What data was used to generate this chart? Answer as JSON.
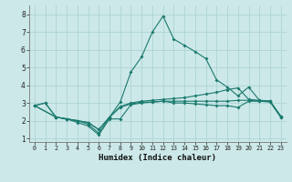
{
  "xlabel": "Humidex (Indice chaleur)",
  "background_color": "#cce8e8",
  "grid_color": "#aed4d4",
  "line_color": "#1a7a6e",
  "xlim": [
    -0.5,
    23.5
  ],
  "ylim": [
    0.8,
    8.5
  ],
  "xticks": [
    0,
    1,
    2,
    3,
    4,
    5,
    6,
    7,
    8,
    9,
    10,
    11,
    12,
    13,
    14,
    15,
    16,
    17,
    18,
    19,
    20,
    21,
    22,
    23
  ],
  "yticks": [
    1,
    2,
    3,
    4,
    5,
    6,
    7,
    8
  ],
  "line1_x": [
    0,
    1,
    2,
    3,
    4,
    5,
    6,
    7,
    8,
    9,
    10,
    11,
    12,
    13,
    14,
    15,
    16,
    17,
    18,
    19,
    20,
    21,
    22,
    23
  ],
  "line1_y": [
    2.85,
    3.0,
    2.2,
    2.1,
    1.9,
    1.7,
    1.2,
    2.1,
    2.1,
    2.9,
    3.0,
    3.05,
    3.1,
    3.0,
    3.0,
    2.95,
    2.9,
    2.85,
    2.85,
    2.75,
    3.1,
    3.1,
    3.05,
    2.2
  ],
  "line2_x": [
    0,
    1,
    2,
    3,
    4,
    5,
    6,
    7,
    8,
    9,
    10,
    11,
    12,
    13,
    14,
    15,
    16,
    17,
    18,
    19,
    20,
    21,
    22,
    23
  ],
  "line2_y": [
    2.85,
    3.0,
    2.2,
    2.1,
    2.0,
    1.8,
    1.3,
    2.2,
    3.05,
    4.75,
    5.6,
    7.0,
    7.9,
    6.6,
    6.25,
    5.9,
    5.5,
    4.3,
    3.9,
    3.4,
    3.9,
    3.15,
    3.1,
    2.2
  ],
  "line3_x": [
    0,
    2,
    3,
    4,
    5,
    6,
    7,
    8,
    9,
    10,
    11,
    12,
    13,
    14,
    15,
    16,
    17,
    18,
    19,
    20,
    21,
    22,
    23
  ],
  "line3_y": [
    2.85,
    2.2,
    2.1,
    2.0,
    1.9,
    1.5,
    2.2,
    2.8,
    3.0,
    3.1,
    3.15,
    3.2,
    3.25,
    3.3,
    3.4,
    3.5,
    3.6,
    3.75,
    3.85,
    3.2,
    3.15,
    3.1,
    2.25
  ],
  "line4_x": [
    0,
    2,
    3,
    4,
    5,
    6,
    7,
    8,
    9,
    10,
    11,
    12,
    13,
    14,
    15,
    16,
    17,
    18,
    19,
    20,
    21,
    22,
    23
  ],
  "line4_y": [
    2.85,
    2.2,
    2.1,
    2.0,
    1.9,
    1.5,
    2.2,
    2.75,
    2.95,
    3.05,
    3.05,
    3.1,
    3.1,
    3.1,
    3.1,
    3.1,
    3.1,
    3.1,
    3.15,
    3.15,
    3.1,
    3.1,
    2.25
  ]
}
